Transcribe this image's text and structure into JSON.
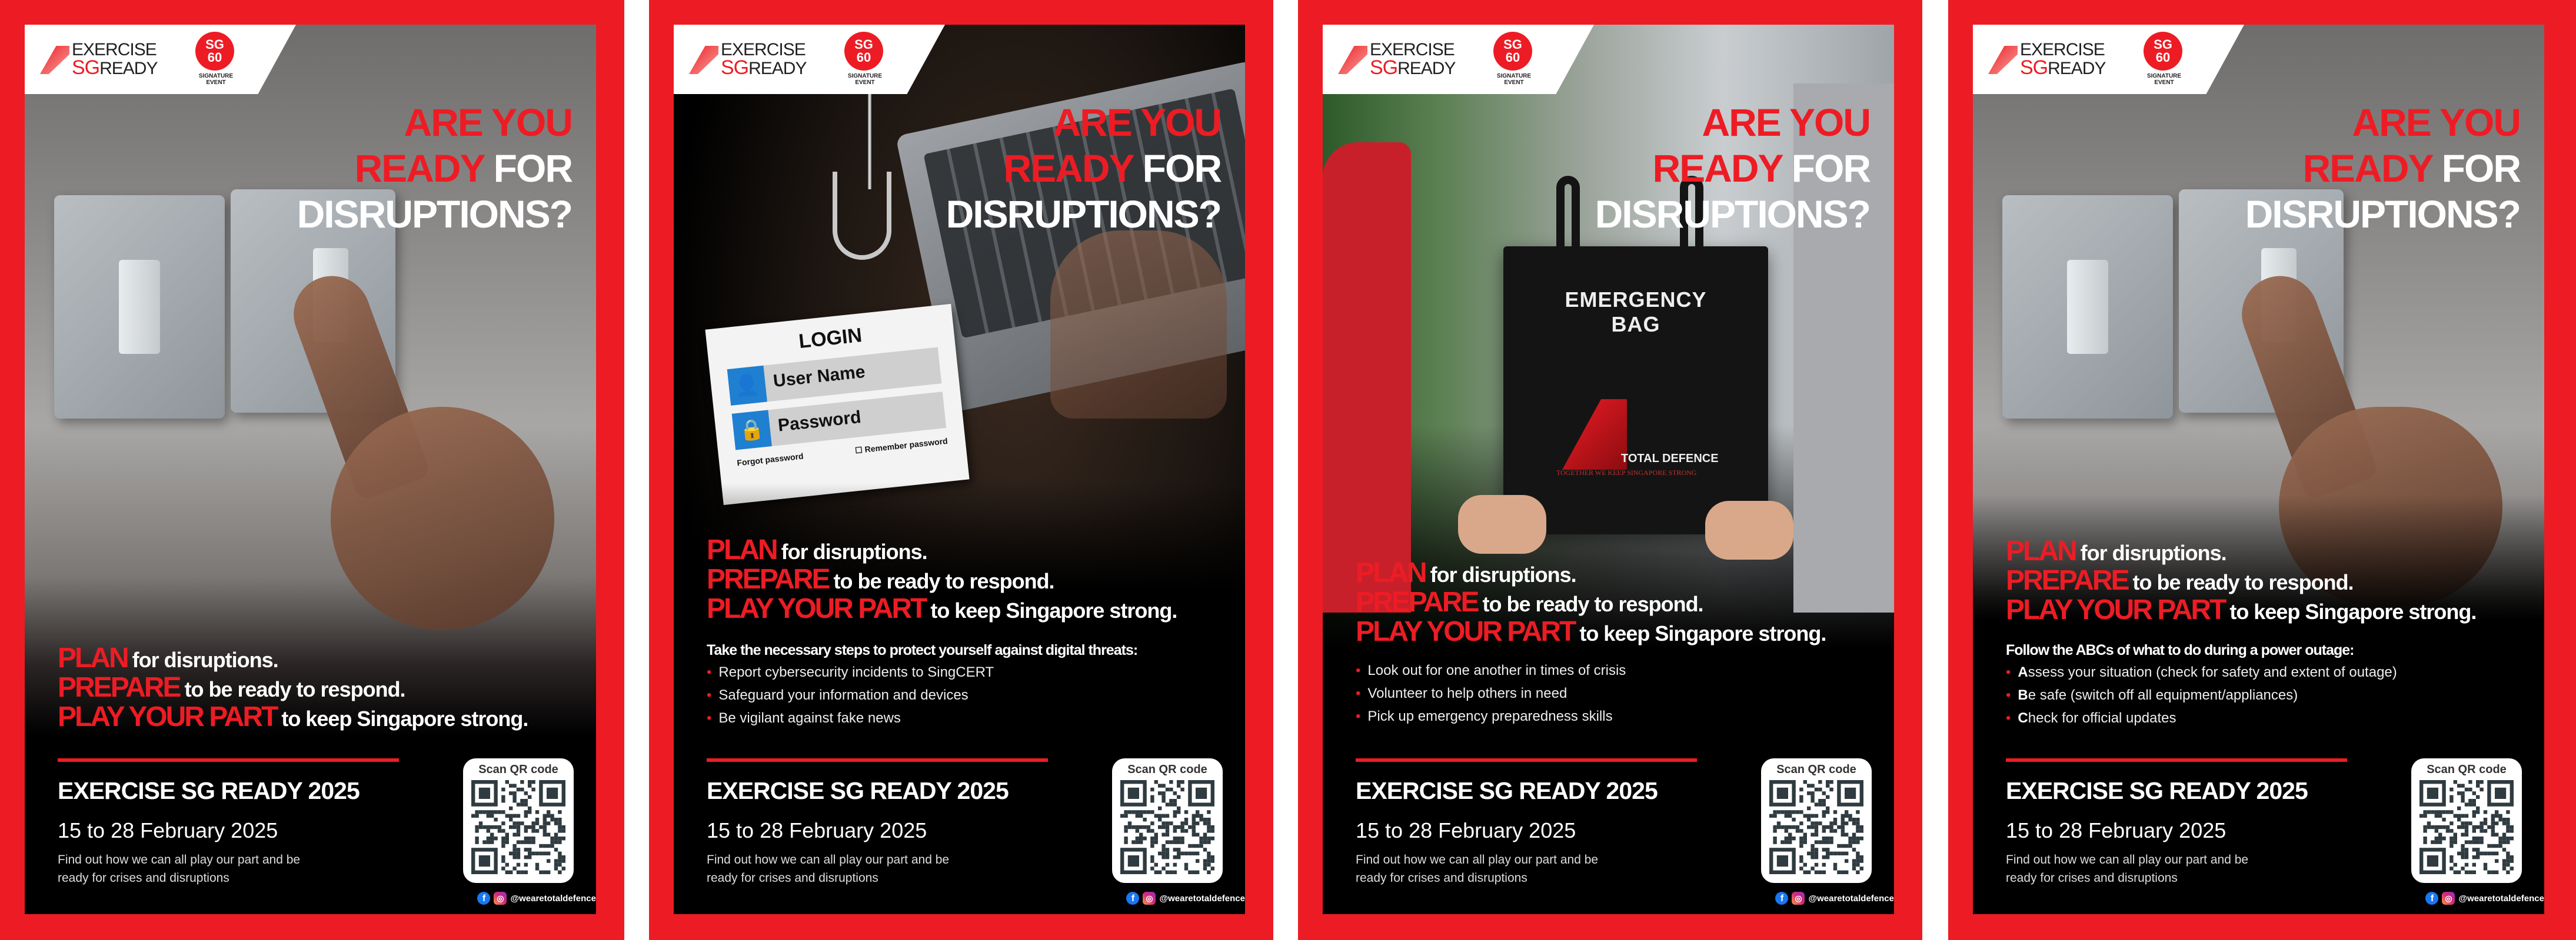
{
  "colors": {
    "brand_red": "#ED1C24",
    "panel": "#000000"
  },
  "logo": {
    "exercise": "EXERCISE",
    "sg": "SG",
    "ready": "READY",
    "sg60_line1": "SG",
    "sg60_line2": "60",
    "sg60_sub": "SIGNATURE EVENT"
  },
  "headline": {
    "line1": "ARE YOU",
    "line2_red": "READY",
    "line2_white": "FOR",
    "line3": "DISRUPTIONS?"
  },
  "tagline": [
    {
      "red": "PLAN",
      "white": "for disruptions."
    },
    {
      "red": "PREPARE",
      "white": "to be ready to respond."
    },
    {
      "red": "PLAY YOUR PART",
      "white": "to keep Singapore strong."
    }
  ],
  "footer": {
    "title": "EXERCISE SG READY 2025",
    "date": "15 to 28 February 2025",
    "find_out": "Find out how we can all play our part and be ready for crises and disruptions",
    "qr_label": "Scan QR code",
    "handle": "@wearetotaldefence",
    "icons": [
      "facebook-icon",
      "instagram-icon"
    ]
  },
  "posters": [
    {
      "theme": "power outage"
    },
    {
      "intro": "Take the necessary steps to protect yourself against digital threats:",
      "bullets": [
        {
          "lead": "",
          "text": "Report cybersecurity incidents to SingCERT"
        },
        {
          "lead": "",
          "text": "Safeguard your information and devices"
        },
        {
          "lead": "",
          "text": "Be vigilant against fake news"
        }
      ],
      "login_card": {
        "title": "LOGIN",
        "username": "User Name",
        "password": "Password",
        "forgot": "Forgot password",
        "remember": "Remember password"
      }
    },
    {
      "bullets": [
        {
          "lead": "",
          "text": "Look out for one another in times of crisis"
        },
        {
          "lead": "",
          "text": "Volunteer to help others in need"
        },
        {
          "lead": "",
          "text": "Pick up emergency preparedness skills"
        }
      ],
      "bag": {
        "line1": "EMERGENCY",
        "line2": "BAG",
        "brand": "TOTAL DEFENCE",
        "motto": "TOGETHER WE KEEP SINGAPORE STRONG"
      }
    },
    {
      "intro": "Follow the ABCs of what to do during a power outage:",
      "bullets": [
        {
          "lead": "A",
          "text": "ssess your situation (check for safety and extent of outage)"
        },
        {
          "lead": "B",
          "text": "e safe (switch off all equipment/appliances)"
        },
        {
          "lead": "C",
          "text": "heck for official updates"
        }
      ]
    }
  ]
}
